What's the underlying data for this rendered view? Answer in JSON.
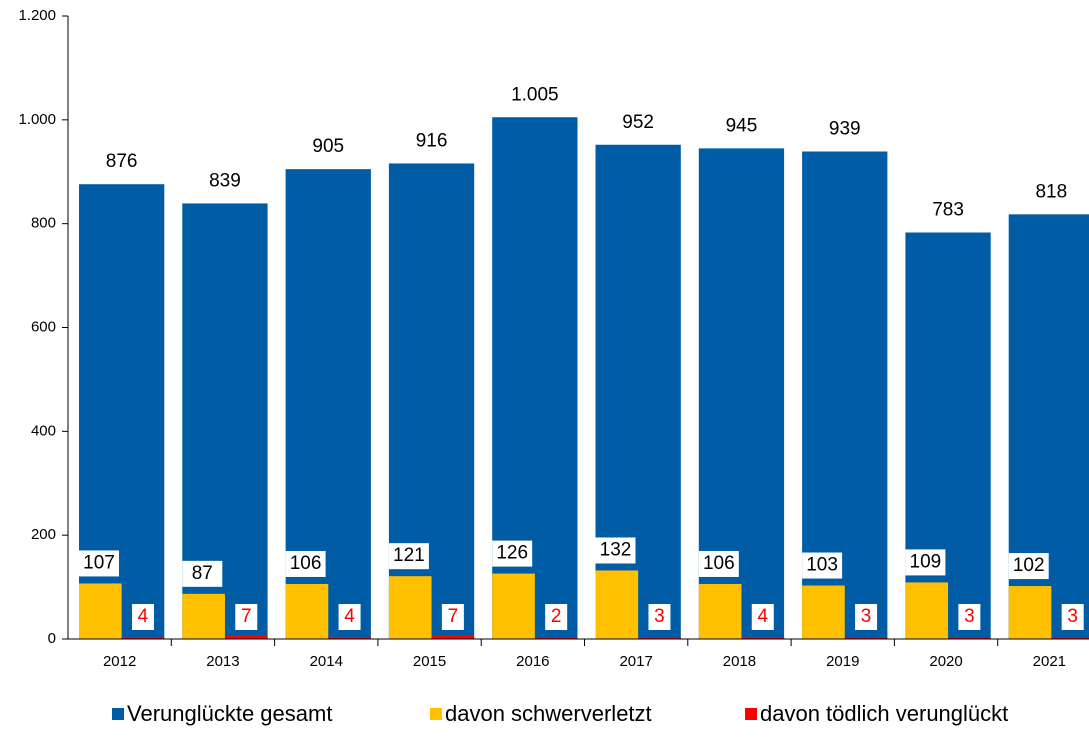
{
  "chart_data": {
    "type": "bar",
    "categories": [
      "2012",
      "2013",
      "2014",
      "2015",
      "2016",
      "2017",
      "2018",
      "2019",
      "2020",
      "2021"
    ],
    "series": [
      {
        "name": "Verunglückte gesamt",
        "color": "#005da5",
        "values": [
          876,
          839,
          905,
          916,
          1005,
          952,
          945,
          939,
          783,
          818
        ],
        "value_labels": [
          "876",
          "839",
          "905",
          "916",
          "1.005",
          "952",
          "945",
          "939",
          "783",
          "818"
        ]
      },
      {
        "name": "davon schwerverletzt",
        "color": "#ffc000",
        "values": [
          107,
          87,
          106,
          121,
          126,
          132,
          106,
          103,
          109,
          102
        ]
      },
      {
        "name": "davon tödlich verunglückt",
        "color": "#ff0000",
        "values": [
          4,
          7,
          4,
          7,
          2,
          3,
          4,
          3,
          3,
          3
        ]
      }
    ],
    "ylim": [
      0,
      1200
    ],
    "yticks": [
      0,
      200,
      400,
      600,
      800,
      {
        "value": 1000,
        "label": "1.000"
      },
      {
        "value": 1200,
        "label": "1.200"
      }
    ],
    "legend": "bottom"
  }
}
